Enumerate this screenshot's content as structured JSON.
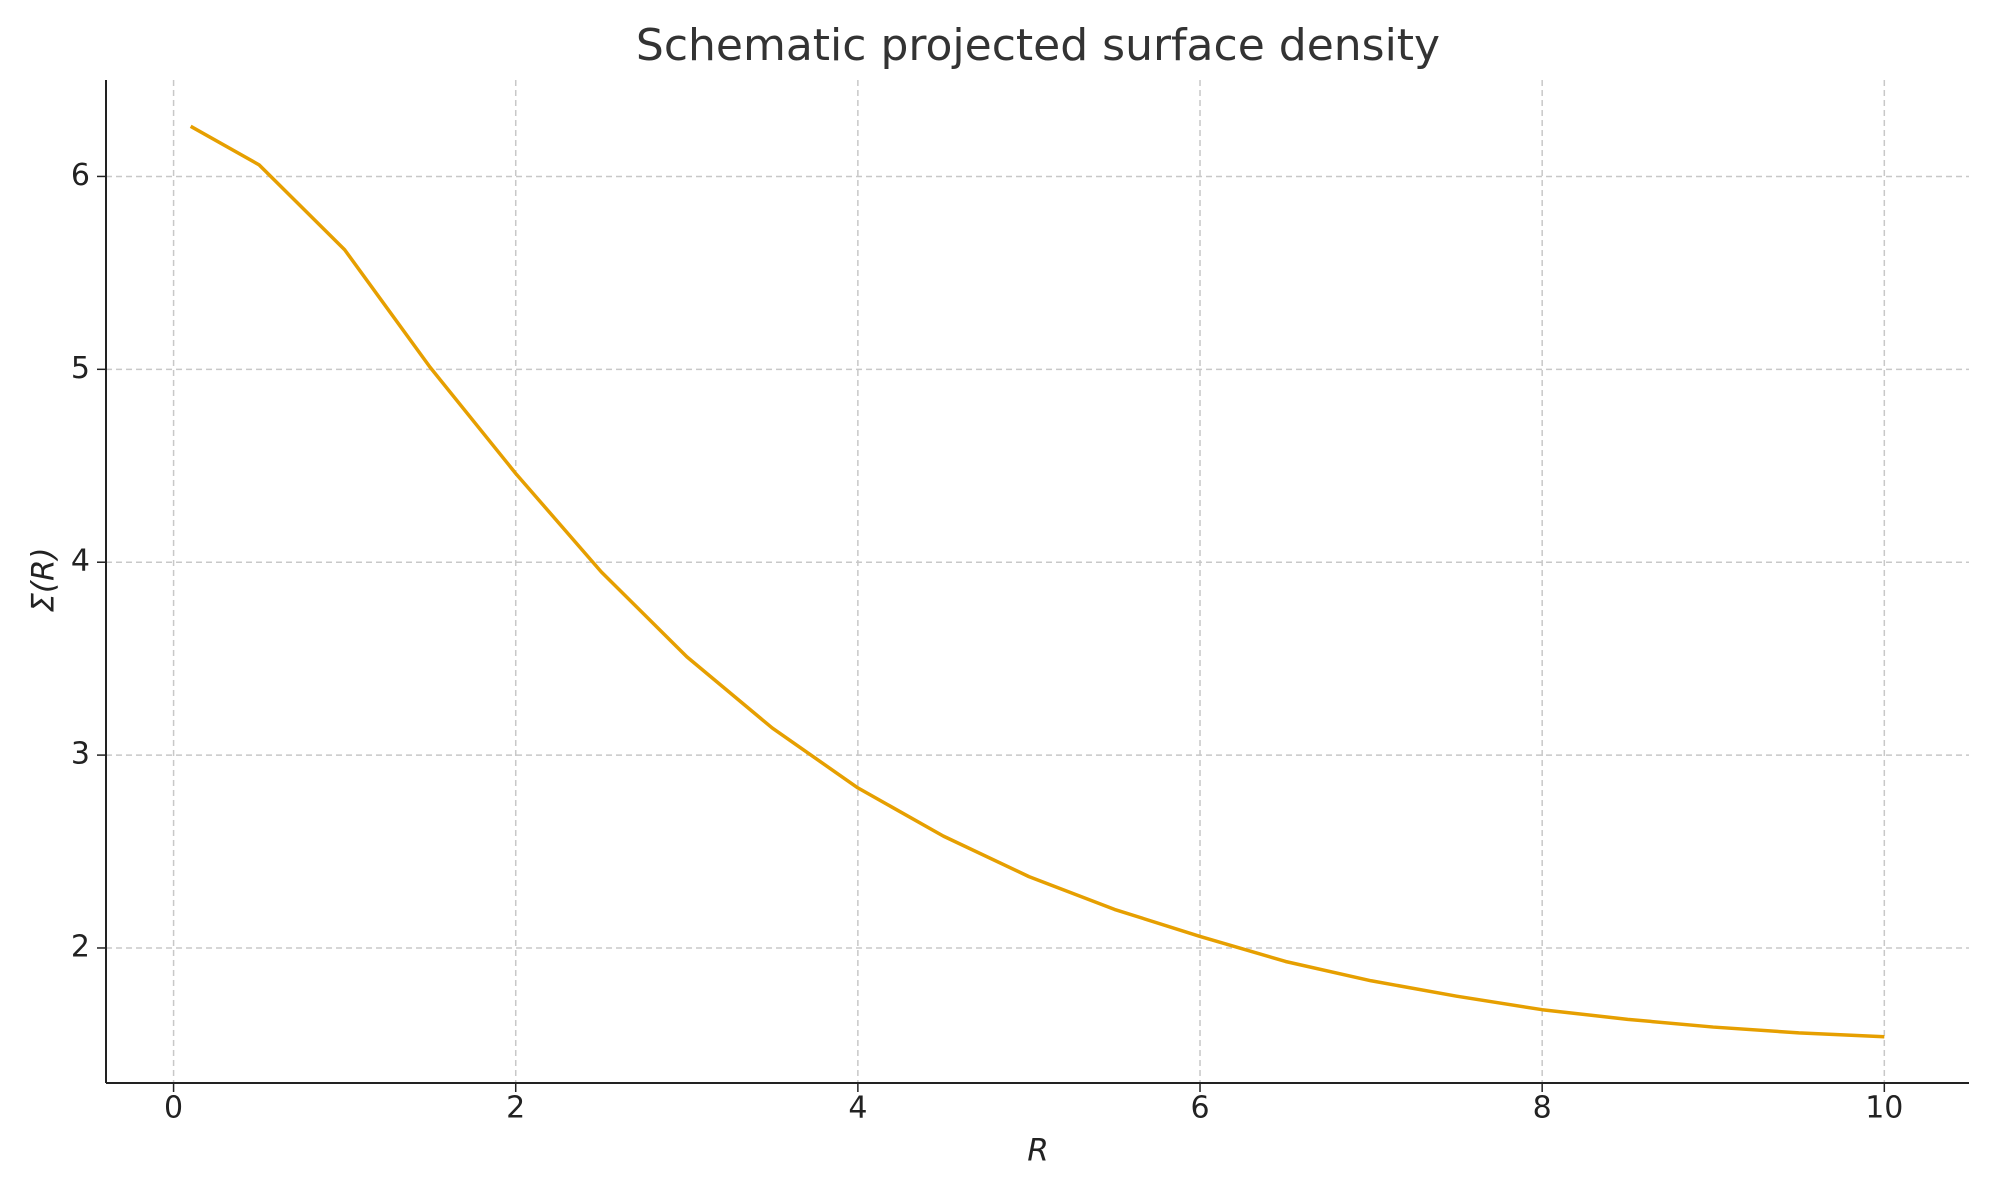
{
  "chart_data": {
    "type": "line",
    "title": "Schematic projected surface density",
    "x_label": "R",
    "y_label": "Σ(R)",
    "x": [
      0.1,
      0.5,
      1,
      1.5,
      2,
      2.5,
      3,
      3.5,
      4,
      4.5,
      5,
      5.5,
      6,
      6.5,
      7,
      7.5,
      8,
      8.5,
      9,
      9.5,
      10
    ],
    "series": [
      {
        "name": "Σ(R)",
        "color": "#e69f00",
        "values": [
          6.26,
          6.06,
          5.62,
          5.01,
          4.46,
          3.95,
          3.51,
          3.14,
          2.83,
          2.58,
          2.37,
          2.2,
          2.06,
          1.93,
          1.83,
          1.75,
          1.68,
          1.63,
          1.59,
          1.56,
          1.54
        ]
      }
    ],
    "xlim": [
      -0.395,
      10.495
    ],
    "ylim": [
      1.3,
      6.5
    ],
    "xticks": [
      0,
      2,
      4,
      6,
      8,
      10
    ],
    "yticks": [
      2,
      3,
      4,
      5,
      6
    ],
    "grid": true
  }
}
